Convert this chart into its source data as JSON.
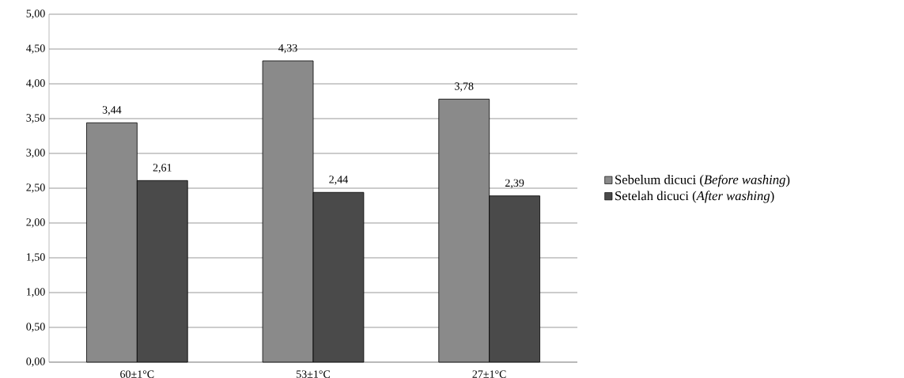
{
  "chart_data": {
    "type": "bar",
    "categories": [
      "60±1°C",
      "53±1°C",
      "27±1°C"
    ],
    "series": [
      {
        "name": "Sebelum dicuci (*Before washing*)",
        "color": "#8a8a8a",
        "values": [
          3.44,
          4.33,
          3.78
        ],
        "value_labels": [
          "3,44",
          "4,33",
          "3,78"
        ]
      },
      {
        "name": "Setelah dicuci (*After washing*)",
        "color": "#4a4a4a",
        "values": [
          2.61,
          2.44,
          2.39
        ],
        "value_labels": [
          "2,61",
          "2,44",
          "2,39"
        ]
      }
    ],
    "ylim": [
      0,
      5
    ],
    "yticks": [
      {
        "value": 0,
        "label": "0,00"
      },
      {
        "value": 0.5,
        "label": "0,50"
      },
      {
        "value": 1,
        "label": "1,00"
      },
      {
        "value": 1.5,
        "label": "1,50"
      },
      {
        "value": 2,
        "label": "2,00"
      },
      {
        "value": 2.5,
        "label": "2,50"
      },
      {
        "value": 3,
        "label": "3,00"
      },
      {
        "value": 3.5,
        "label": "3,50"
      },
      {
        "value": 4,
        "label": "4,00"
      },
      {
        "value": 4.5,
        "label": "4,50"
      },
      {
        "value": 5,
        "label": "5,00"
      }
    ],
    "grid": "y",
    "legend": "right"
  }
}
